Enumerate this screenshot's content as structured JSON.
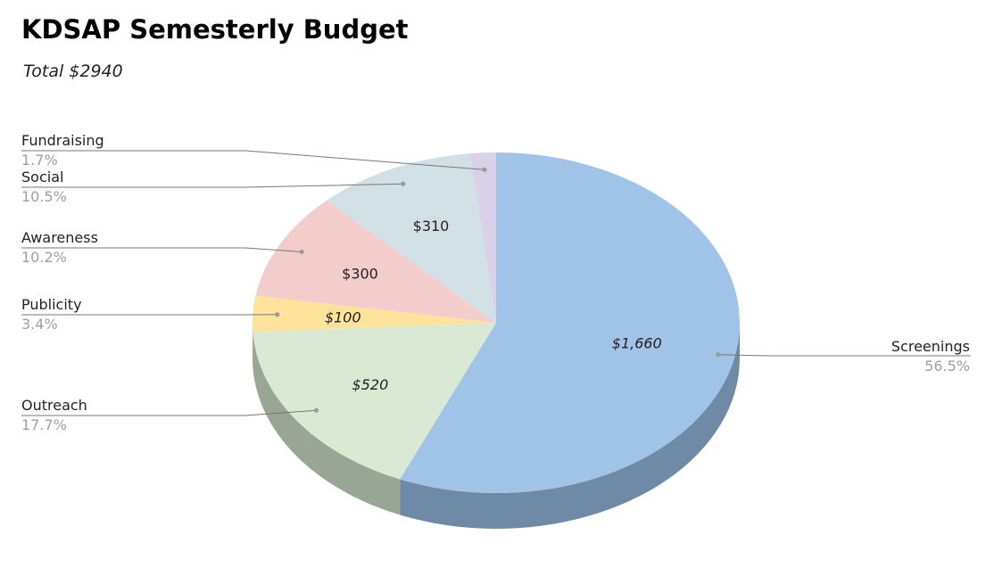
{
  "chart_data": {
    "type": "pie",
    "title": "KDSAP Semesterly Budget",
    "subtitle": "Total $2940",
    "three_d": true,
    "slices": [
      {
        "name": "Screenings",
        "value": 1660,
        "value_label": "$1,660",
        "percent_label": "56.5%",
        "color": "#a0c4e8",
        "side_color": "#6e8aa6",
        "value_italic": true
      },
      {
        "name": "Outreach",
        "value": 520,
        "value_label": "$520",
        "percent_label": "17.7%",
        "color": "#d9e9d3",
        "side_color": "#99a595",
        "value_italic": true
      },
      {
        "name": "Publicity",
        "value": 100,
        "value_label": "$100",
        "percent_label": "3.4%",
        "color": "#ffe39a",
        "side_color": "#b3a06c",
        "value_italic": true
      },
      {
        "name": "Awareness",
        "value": 300,
        "value_label": "$300",
        "percent_label": "10.2%",
        "color": "#f3cccc",
        "side_color": "#ab9090",
        "value_italic": false
      },
      {
        "name": "Social",
        "value": 310,
        "value_label": "$310",
        "percent_label": "10.5%",
        "color": "#d1e0e4",
        "side_color": "#939ea1",
        "value_italic": false
      },
      {
        "name": "Fundraising",
        "value": 50,
        "value_label": "",
        "percent_label": "1.7%",
        "color": "#d9d1e8",
        "side_color": "#9993a4",
        "value_italic": false
      }
    ],
    "legend": "callout-labels",
    "colors": {
      "leader_line": "#777777",
      "dot": "#999999"
    }
  }
}
